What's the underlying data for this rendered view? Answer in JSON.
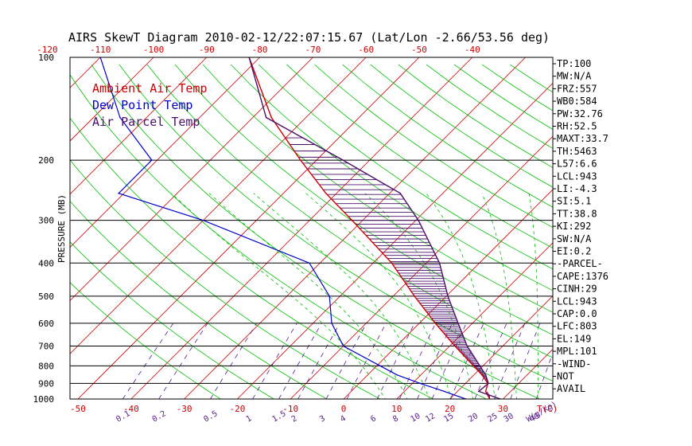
{
  "title": "AIRS SkewT Diagram 2010-02-12/22:07:15.67 (Lat/Lon -2.66/53.56 deg)",
  "ylabel": "PRESSURE (MB)",
  "xlabel": "T(C)",
  "mix_unit": "W(g/kg)",
  "colors": {
    "ambient": "#cc0000",
    "dew": "#0000cc",
    "parcel": "#4b0f6b",
    "dry_adiabat": "#00c000",
    "mixing": "#5a1a8a",
    "isotherm": "#cc0000"
  },
  "legend": [
    {
      "label": "Ambient Air Temp",
      "color": "#cc0000"
    },
    {
      "label": "Dew Point Temp",
      "color": "#0000cc"
    },
    {
      "label": "Air Parcel Temp",
      "color": "#4b0f6b"
    }
  ],
  "indices": [
    "TP:100",
    "MW:N/A",
    "FRZ:557",
    "WB0:584",
    "PW:32.76",
    "RH:52.5",
    "MAXT:33.7",
    "TH:5463",
    "L57:6.6",
    "LCL:943",
    "LI:-4.3",
    "SI:5.1",
    "TT:38.8",
    "KI:292",
    "SW:N/A",
    "EI:0.2",
    "-PARCEL-",
    "CAPE:1376",
    "CINH:29",
    "LCL:943",
    "CAP:0.0",
    "LFC:803",
    "EL:149",
    "MPL:101",
    "-WIND-",
    "NOT",
    "AVAIL"
  ],
  "chart_data": {
    "type": "line",
    "title": "AIRS SkewT Diagram 2010-02-12/22:07:15.67 (Lat/Lon -2.66/53.56 deg)",
    "ylabel": "PRESSURE (MB)",
    "xlabel": "T(C)",
    "y_scale": "log",
    "ylim": [
      1000,
      100
    ],
    "pressure_ticks": [
      100,
      200,
      300,
      400,
      500,
      600,
      700,
      800,
      900,
      1000
    ],
    "temp_ticks_top": [
      -120,
      -110,
      -100,
      -90,
      -80,
      -70,
      -60,
      -50,
      -40
    ],
    "temp_ticks_bottom": [
      -50,
      -40,
      -30,
      -20,
      -10,
      0,
      10,
      20,
      30
    ],
    "mixing_ratio_ticks": [
      0.1,
      0.2,
      0.5,
      1,
      1.5,
      2,
      3,
      4,
      6,
      8,
      10,
      12,
      15,
      20,
      25,
      30,
      40
    ],
    "series": [
      {
        "name": "Ambient Air Temp",
        "points": [
          [
            1000,
            27.5
          ],
          [
            950,
            25.3
          ],
          [
            900,
            24.2
          ],
          [
            850,
            21.5
          ],
          [
            700,
            11
          ],
          [
            600,
            3
          ],
          [
            500,
            -6
          ],
          [
            400,
            -16.5
          ],
          [
            300,
            -32
          ],
          [
            250,
            -42
          ],
          [
            200,
            -53
          ],
          [
            150,
            -66.5
          ],
          [
            100,
            -82
          ]
        ]
      },
      {
        "name": "Dew Point Temp",
        "points": [
          [
            1000,
            23
          ],
          [
            950,
            17.5
          ],
          [
            900,
            11.5
          ],
          [
            850,
            5.5
          ],
          [
            700,
            -10
          ],
          [
            600,
            -16.5
          ],
          [
            500,
            -22
          ],
          [
            400,
            -32
          ],
          [
            300,
            -60
          ],
          [
            250,
            -81
          ],
          [
            200,
            -81
          ],
          [
            150,
            -95
          ],
          [
            100,
            -110
          ]
        ]
      },
      {
        "name": "Air Parcel Temp",
        "points": [
          [
            1000,
            29.5
          ],
          [
            950,
            24
          ],
          [
            900,
            24.3
          ],
          [
            850,
            22.2
          ],
          [
            700,
            13.3
          ],
          [
            600,
            7.3
          ],
          [
            500,
            0.3
          ],
          [
            400,
            -7.5
          ],
          [
            300,
            -19.5
          ],
          [
            250,
            -28
          ],
          [
            200,
            -45
          ],
          [
            150,
            -67.5
          ],
          [
            100,
            -82
          ]
        ]
      }
    ]
  }
}
